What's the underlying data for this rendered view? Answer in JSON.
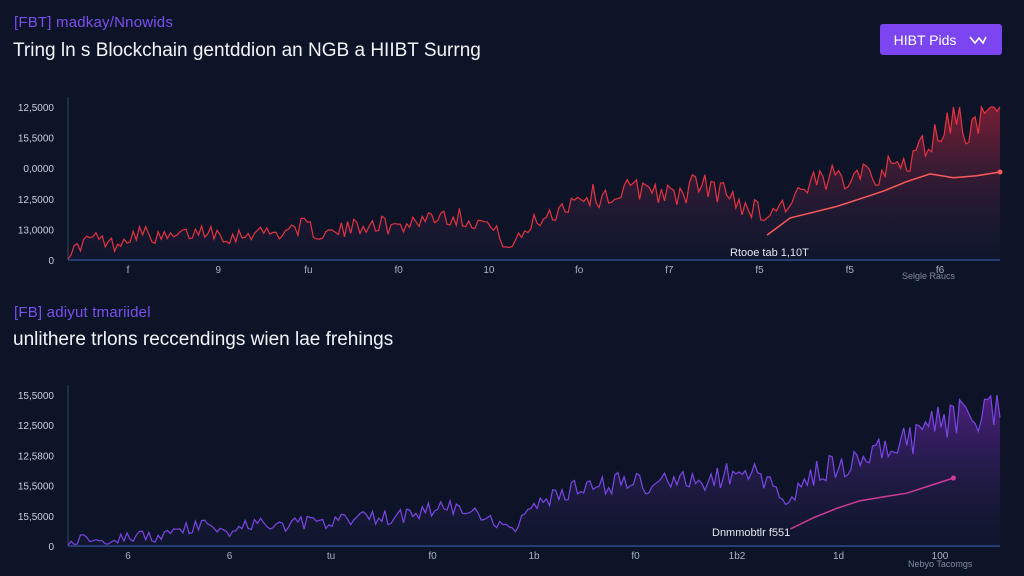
{
  "header": {
    "kicker": "[FBT] madkay/Nnowids",
    "title": "Tring ln s Blockchain gentddion an NGB a HIIBT Surrng",
    "button_label": "HIBT Pids",
    "button_icon": "chevron-check-icon"
  },
  "section2": {
    "kicker": "[FB] adiyut tmariidel",
    "title": "unlithere trlons reccendings wien lae frehings"
  },
  "colors": {
    "background": "#0e1428",
    "accent": "#7b45f2",
    "chart1_line": "#e5333f",
    "chart2_line": "#7a46e6",
    "chart2_trend": "#d23a9a"
  },
  "chart_data": [
    {
      "type": "line",
      "y_tick_labels": [
        "12,5000",
        "15,5000",
        "0,0000",
        "12,5000",
        "13,0000",
        "0"
      ],
      "x_tick_labels": [
        "f",
        "9",
        "fu",
        "f0",
        "10",
        "fo",
        "f7",
        "f5",
        "f5",
        "f6"
      ],
      "annotation": "Rtooe tab 1,10T",
      "footnote": "Selgle Raucs",
      "x": [
        0,
        1,
        2,
        3,
        4,
        5,
        6,
        7,
        8,
        9,
        10,
        11,
        12,
        13,
        14,
        15,
        16,
        17,
        18,
        19,
        20,
        21,
        22,
        23,
        24,
        25,
        26,
        27,
        28,
        29,
        30,
        31,
        32,
        33,
        34,
        35,
        36,
        37,
        38,
        39,
        40
      ],
      "series": [
        {
          "role": "price",
          "values": [
            0.3,
            1.2,
            0.8,
            1.5,
            1.1,
            1.3,
            1.6,
            1.2,
            1.5,
            1.4,
            1.8,
            1.3,
            1.6,
            2.0,
            1.7,
            2.1,
            2.4,
            2.2,
            1.9,
            0.6,
            2.0,
            2.6,
            3.4,
            3.3,
            3.6,
            3.9,
            3.2,
            4.0,
            3.6,
            2.9,
            2.4,
            3.1,
            3.9,
            4.3,
            4.9,
            4.5,
            5.2,
            6.2,
            7.6,
            6.8,
            7.9
          ]
        },
        {
          "role": "trend",
          "values": [
            null,
            null,
            null,
            null,
            null,
            null,
            null,
            null,
            null,
            null,
            null,
            null,
            null,
            null,
            null,
            null,
            null,
            null,
            null,
            null,
            null,
            null,
            null,
            null,
            null,
            null,
            null,
            null,
            null,
            null,
            1.3,
            2.2,
            2.5,
            2.8,
            3.2,
            3.6,
            4.1,
            4.5,
            4.3,
            4.4,
            4.6
          ]
        }
      ],
      "ylim": [
        0,
        8
      ]
    },
    {
      "type": "line",
      "y_tick_labels": [
        "15,5000",
        "12,5000",
        "12,5800",
        "15,5000",
        "15,5000",
        "0"
      ],
      "x_tick_labels": [
        "6",
        "6",
        "tu",
        "f0",
        "1b",
        "f0",
        "1b2",
        "1d",
        "100"
      ],
      "annotation": "Dnmmobtlr f551",
      "footnote": "Nebyo Tacomgs",
      "x": [
        0,
        1,
        2,
        3,
        4,
        5,
        6,
        7,
        8,
        9,
        10,
        11,
        12,
        13,
        14,
        15,
        16,
        17,
        18,
        19,
        20,
        21,
        22,
        23,
        24,
        25,
        26,
        27,
        28,
        29,
        30,
        31,
        32,
        33,
        34,
        35,
        36,
        37,
        38,
        39,
        40
      ],
      "series": [
        {
          "role": "price",
          "values": [
            0.2,
            0.5,
            0.3,
            0.6,
            0.4,
            0.9,
            1.1,
            0.8,
            1.2,
            1.0,
            1.3,
            1.1,
            1.4,
            1.6,
            1.5,
            1.8,
            2.1,
            1.9,
            1.3,
            0.9,
            2.0,
            2.6,
            3.0,
            3.2,
            3.4,
            3.1,
            3.6,
            3.3,
            3.7,
            4.0,
            3.4,
            2.6,
            3.9,
            4.2,
            4.6,
            5.3,
            5.6,
            6.4,
            6.9,
            6.3,
            7.6
          ]
        },
        {
          "role": "trend",
          "values": [
            null,
            null,
            null,
            null,
            null,
            null,
            null,
            null,
            null,
            null,
            null,
            null,
            null,
            null,
            null,
            null,
            null,
            null,
            null,
            null,
            null,
            null,
            null,
            null,
            null,
            null,
            null,
            null,
            null,
            null,
            null,
            0.9,
            1.5,
            2.0,
            2.4,
            2.6,
            2.8,
            3.2,
            3.6,
            null,
            null
          ]
        }
      ],
      "ylim": [
        0,
        8
      ]
    }
  ]
}
